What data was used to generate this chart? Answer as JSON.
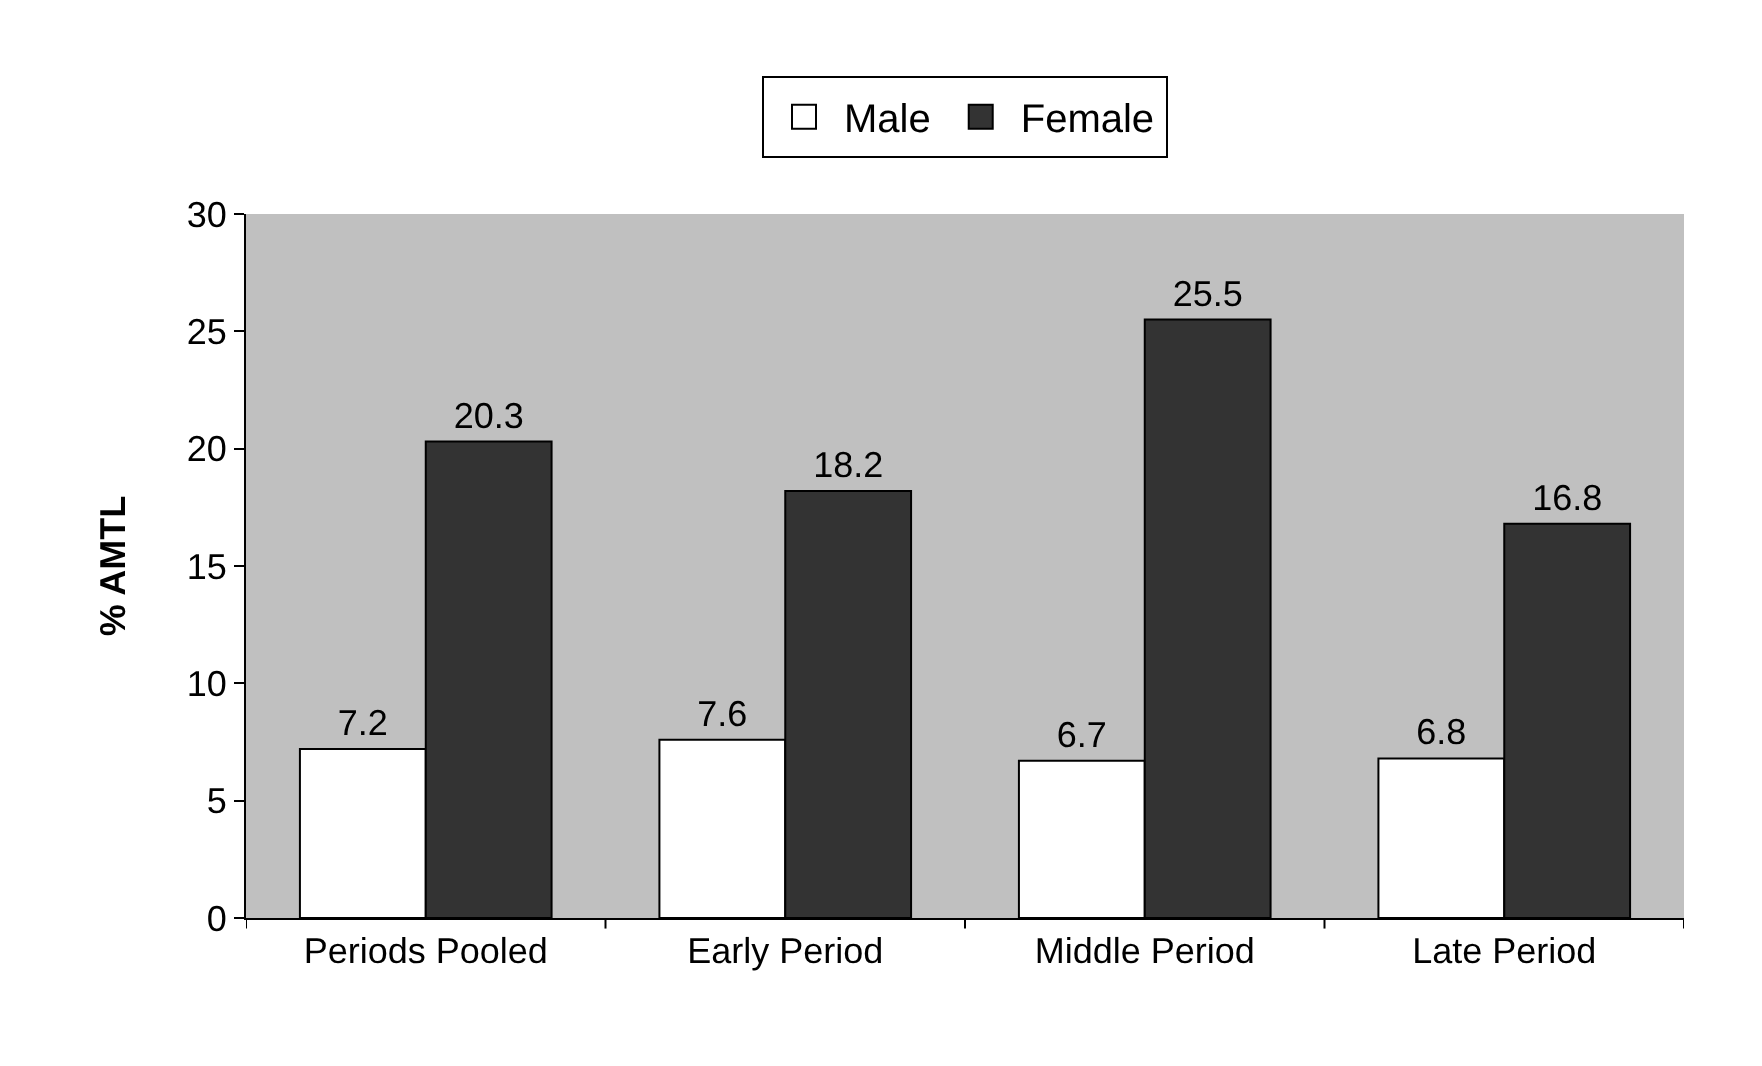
{
  "chart_data": {
    "type": "bar",
    "ylabel": "% AMTL",
    "categories": [
      "Periods Pooled",
      "Early Period",
      "Middle Period",
      "Late Period"
    ],
    "series": [
      {
        "name": "Male",
        "color": "#ffffff",
        "values": [
          7.2,
          7.6,
          6.7,
          6.8
        ]
      },
      {
        "name": "Female",
        "color": "#333333",
        "values": [
          20.3,
          18.2,
          25.5,
          16.8
        ]
      }
    ],
    "ylim": [
      0,
      30
    ],
    "yticks": [
      0,
      5,
      10,
      15,
      20,
      25,
      30
    ],
    "data_labels": true,
    "legend": "top",
    "grid": false
  }
}
